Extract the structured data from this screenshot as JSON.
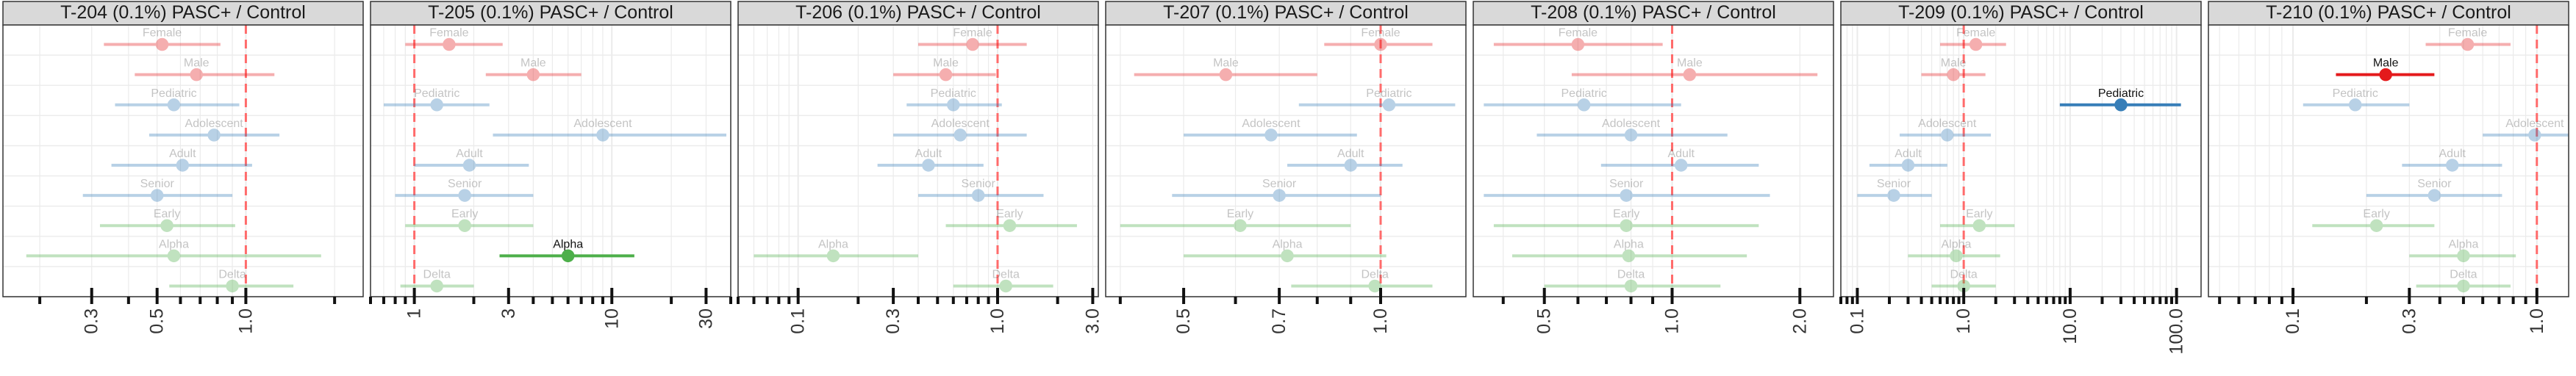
{
  "figure": {
    "background": "#ffffff"
  },
  "colors": {
    "Sex": "#e41a1c",
    "Age": "#377eb8",
    "Variant": "#4daf4a",
    "strip_fill": "#d9d9d9",
    "grid": "#ebebeb",
    "reference_line": "#ff6b6b",
    "dim_opacity": 0.35
  },
  "chart_data": [
    {
      "type": "scatter",
      "title": "T-204 (0.1%) PASC+ / Control",
      "xscale": "log",
      "xlim": [
        0.15,
        2.5
      ],
      "xticks": [
        0.3,
        0.5,
        1.0
      ],
      "xtick_labels": [
        "0.3",
        "0.5",
        "1.0"
      ],
      "reference_x": 1.0,
      "points": [
        {
          "label": "Female",
          "group": "Sex",
          "x": 0.52,
          "lo": 0.33,
          "hi": 0.82,
          "highlighted": false
        },
        {
          "label": "Male",
          "group": "Sex",
          "x": 0.68,
          "lo": 0.42,
          "hi": 1.25,
          "highlighted": false
        },
        {
          "label": "Pediatric",
          "group": "Age",
          "x": 0.57,
          "lo": 0.36,
          "hi": 0.95,
          "highlighted": false
        },
        {
          "label": "Adolescent",
          "group": "Age",
          "x": 0.78,
          "lo": 0.47,
          "hi": 1.3,
          "highlighted": false
        },
        {
          "label": "Adult",
          "group": "Age",
          "x": 0.61,
          "lo": 0.35,
          "hi": 1.05,
          "highlighted": false
        },
        {
          "label": "Senior",
          "group": "Age",
          "x": 0.5,
          "lo": 0.28,
          "hi": 0.9,
          "highlighted": false
        },
        {
          "label": "Early",
          "group": "Variant",
          "x": 0.54,
          "lo": 0.32,
          "hi": 0.92,
          "highlighted": false
        },
        {
          "label": "Alpha",
          "group": "Variant",
          "x": 0.57,
          "lo": 0.18,
          "hi": 1.8,
          "highlighted": false
        },
        {
          "label": "Delta",
          "group": "Variant",
          "x": 0.9,
          "lo": 0.55,
          "hi": 1.45,
          "highlighted": false
        }
      ]
    },
    {
      "type": "scatter",
      "title": "T-205 (0.1%) PASC+ / Control",
      "xscale": "log",
      "xlim": [
        0.6,
        40
      ],
      "xticks": [
        1,
        3,
        10,
        30
      ],
      "xtick_labels": [
        "1",
        "3",
        "10",
        "30"
      ],
      "reference_x": 1.0,
      "points": [
        {
          "label": "Female",
          "group": "Sex",
          "x": 1.5,
          "lo": 0.9,
          "hi": 2.8,
          "highlighted": false
        },
        {
          "label": "Male",
          "group": "Sex",
          "x": 4.0,
          "lo": 2.3,
          "hi": 7.0,
          "highlighted": false
        },
        {
          "label": "Pediatric",
          "group": "Age",
          "x": 1.3,
          "lo": 0.7,
          "hi": 2.4,
          "highlighted": false
        },
        {
          "label": "Adolescent",
          "group": "Age",
          "x": 9.0,
          "lo": 2.5,
          "hi": 38.0,
          "highlighted": false
        },
        {
          "label": "Adult",
          "group": "Age",
          "x": 1.9,
          "lo": 1.0,
          "hi": 3.8,
          "highlighted": false
        },
        {
          "label": "Senior",
          "group": "Age",
          "x": 1.8,
          "lo": 0.8,
          "hi": 4.0,
          "highlighted": false
        },
        {
          "label": "Early",
          "group": "Variant",
          "x": 1.8,
          "lo": 0.9,
          "hi": 4.0,
          "highlighted": false
        },
        {
          "label": "Alpha",
          "group": "Variant",
          "x": 6.0,
          "lo": 2.7,
          "hi": 13.0,
          "highlighted": true
        },
        {
          "label": "Delta",
          "group": "Variant",
          "x": 1.3,
          "lo": 0.85,
          "hi": 2.0,
          "highlighted": false
        }
      ]
    },
    {
      "type": "scatter",
      "title": "T-206 (0.1%) PASC+ / Control",
      "xscale": "log",
      "xlim": [
        0.05,
        3.2
      ],
      "xticks": [
        0.1,
        0.3,
        1.0,
        3.0
      ],
      "xtick_labels": [
        "0.1",
        "0.3",
        "1.0",
        "3.0"
      ],
      "reference_x": 1.0,
      "points": [
        {
          "label": "Female",
          "group": "Sex",
          "x": 0.75,
          "lo": 0.4,
          "hi": 1.4,
          "highlighted": false
        },
        {
          "label": "Male",
          "group": "Sex",
          "x": 0.55,
          "lo": 0.3,
          "hi": 0.98,
          "highlighted": false
        },
        {
          "label": "Pediatric",
          "group": "Age",
          "x": 0.6,
          "lo": 0.35,
          "hi": 1.05,
          "highlighted": false
        },
        {
          "label": "Adolescent",
          "group": "Age",
          "x": 0.65,
          "lo": 0.3,
          "hi": 1.4,
          "highlighted": false
        },
        {
          "label": "Adult",
          "group": "Age",
          "x": 0.45,
          "lo": 0.25,
          "hi": 0.85,
          "highlighted": false
        },
        {
          "label": "Senior",
          "group": "Age",
          "x": 0.8,
          "lo": 0.4,
          "hi": 1.7,
          "highlighted": false
        },
        {
          "label": "Early",
          "group": "Variant",
          "x": 1.15,
          "lo": 0.55,
          "hi": 2.5,
          "highlighted": false
        },
        {
          "label": "Alpha",
          "group": "Variant",
          "x": 0.15,
          "lo": 0.06,
          "hi": 0.4,
          "highlighted": false
        },
        {
          "label": "Delta",
          "group": "Variant",
          "x": 1.1,
          "lo": 0.6,
          "hi": 1.9,
          "highlighted": false
        }
      ]
    },
    {
      "type": "scatter",
      "title": "T-207 (0.1%) PASC+ / Control",
      "xscale": "log",
      "xlim": [
        0.38,
        1.35
      ],
      "xticks": [
        0.5,
        0.7,
        1.0
      ],
      "xtick_labels": [
        "0.5",
        "0.7",
        "1.0"
      ],
      "reference_x": 1.0,
      "points": [
        {
          "label": "Female",
          "group": "Sex",
          "x": 1.0,
          "lo": 0.82,
          "hi": 1.2,
          "highlighted": false
        },
        {
          "label": "Male",
          "group": "Sex",
          "x": 0.58,
          "lo": 0.42,
          "hi": 0.8,
          "highlighted": false
        },
        {
          "label": "Pediatric",
          "group": "Age",
          "x": 1.03,
          "lo": 0.75,
          "hi": 1.3,
          "highlighted": false
        },
        {
          "label": "Adolescent",
          "group": "Age",
          "x": 0.68,
          "lo": 0.5,
          "hi": 0.92,
          "highlighted": false
        },
        {
          "label": "Adult",
          "group": "Age",
          "x": 0.9,
          "lo": 0.72,
          "hi": 1.08,
          "highlighted": false
        },
        {
          "label": "Senior",
          "group": "Age",
          "x": 0.7,
          "lo": 0.48,
          "hi": 1.0,
          "highlighted": false
        },
        {
          "label": "Early",
          "group": "Variant",
          "x": 0.61,
          "lo": 0.4,
          "hi": 0.9,
          "highlighted": false
        },
        {
          "label": "Alpha",
          "group": "Variant",
          "x": 0.72,
          "lo": 0.5,
          "hi": 1.02,
          "highlighted": false
        },
        {
          "label": "Delta",
          "group": "Variant",
          "x": 0.98,
          "lo": 0.73,
          "hi": 1.2,
          "highlighted": false
        }
      ]
    },
    {
      "type": "scatter",
      "title": "T-208 (0.1%) PASC+ / Control",
      "xscale": "log",
      "xlim": [
        0.34,
        2.4
      ],
      "xticks": [
        0.5,
        1.0,
        2.0
      ],
      "xtick_labels": [
        "0.5",
        "1.0",
        "2.0"
      ],
      "reference_x": 1.0,
      "points": [
        {
          "label": "Female",
          "group": "Sex",
          "x": 0.6,
          "lo": 0.38,
          "hi": 0.95,
          "highlighted": false
        },
        {
          "label": "Male",
          "group": "Sex",
          "x": 1.1,
          "lo": 0.58,
          "hi": 2.2,
          "highlighted": false
        },
        {
          "label": "Pediatric",
          "group": "Age",
          "x": 0.62,
          "lo": 0.36,
          "hi": 1.05,
          "highlighted": false
        },
        {
          "label": "Adolescent",
          "group": "Age",
          "x": 0.8,
          "lo": 0.48,
          "hi": 1.35,
          "highlighted": false
        },
        {
          "label": "Adult",
          "group": "Age",
          "x": 1.05,
          "lo": 0.68,
          "hi": 1.6,
          "highlighted": false
        },
        {
          "label": "Senior",
          "group": "Age",
          "x": 0.78,
          "lo": 0.36,
          "hi": 1.7,
          "highlighted": false
        },
        {
          "label": "Early",
          "group": "Variant",
          "x": 0.78,
          "lo": 0.38,
          "hi": 1.6,
          "highlighted": false
        },
        {
          "label": "Alpha",
          "group": "Variant",
          "x": 0.79,
          "lo": 0.42,
          "hi": 1.5,
          "highlighted": false
        },
        {
          "label": "Delta",
          "group": "Variant",
          "x": 0.8,
          "lo": 0.5,
          "hi": 1.3,
          "highlighted": false
        }
      ]
    },
    {
      "type": "scatter",
      "title": "T-209 (0.1%) PASC+ / Control",
      "xscale": "log",
      "xlim": [
        0.07,
        170
      ],
      "xticks": [
        0.1,
        1.0,
        10.0,
        100.0
      ],
      "xtick_labels": [
        "0.1",
        "1.0",
        "10.0",
        "100.0"
      ],
      "reference_x": 1.0,
      "points": [
        {
          "label": "Female",
          "group": "Sex",
          "x": 1.3,
          "lo": 0.6,
          "hi": 2.5,
          "highlighted": false
        },
        {
          "label": "Male",
          "group": "Sex",
          "x": 0.8,
          "lo": 0.4,
          "hi": 1.6,
          "highlighted": false
        },
        {
          "label": "Pediatric",
          "group": "Age",
          "x": 30.0,
          "lo": 8.0,
          "hi": 110.0,
          "highlighted": true
        },
        {
          "label": "Adolescent",
          "group": "Age",
          "x": 0.7,
          "lo": 0.25,
          "hi": 1.8,
          "highlighted": false
        },
        {
          "label": "Adult",
          "group": "Age",
          "x": 0.3,
          "lo": 0.13,
          "hi": 0.7,
          "highlighted": false
        },
        {
          "label": "Senior",
          "group": "Age",
          "x": 0.22,
          "lo": 0.1,
          "hi": 0.5,
          "highlighted": false
        },
        {
          "label": "Early",
          "group": "Variant",
          "x": 1.4,
          "lo": 0.6,
          "hi": 3.0,
          "highlighted": false
        },
        {
          "label": "Alpha",
          "group": "Variant",
          "x": 0.85,
          "lo": 0.3,
          "hi": 2.2,
          "highlighted": false
        },
        {
          "label": "Delta",
          "group": "Variant",
          "x": 1.0,
          "lo": 0.5,
          "hi": 2.0,
          "highlighted": false
        }
      ]
    },
    {
      "type": "scatter",
      "title": "T-210 (0.1%) PASC+ / Control",
      "xscale": "log",
      "xlim": [
        0.045,
        1.35
      ],
      "xticks": [
        0.1,
        0.3,
        1.0
      ],
      "xtick_labels": [
        "0.1",
        "0.3",
        "1.0"
      ],
      "reference_x": 1.0,
      "points": [
        {
          "label": "Female",
          "group": "Sex",
          "x": 0.52,
          "lo": 0.35,
          "hi": 0.78,
          "highlighted": false
        },
        {
          "label": "Male",
          "group": "Sex",
          "x": 0.24,
          "lo": 0.15,
          "hi": 0.38,
          "highlighted": true
        },
        {
          "label": "Pediatric",
          "group": "Age",
          "x": 0.18,
          "lo": 0.11,
          "hi": 0.3,
          "highlighted": false
        },
        {
          "label": "Adolescent",
          "group": "Age",
          "x": 0.98,
          "lo": 0.6,
          "hi": 1.35,
          "highlighted": false
        },
        {
          "label": "Adult",
          "group": "Age",
          "x": 0.45,
          "lo": 0.28,
          "hi": 0.72,
          "highlighted": false
        },
        {
          "label": "Senior",
          "group": "Age",
          "x": 0.38,
          "lo": 0.2,
          "hi": 0.72,
          "highlighted": false
        },
        {
          "label": "Early",
          "group": "Variant",
          "x": 0.22,
          "lo": 0.12,
          "hi": 0.38,
          "highlighted": false
        },
        {
          "label": "Alpha",
          "group": "Variant",
          "x": 0.5,
          "lo": 0.3,
          "hi": 0.82,
          "highlighted": false
        },
        {
          "label": "Delta",
          "group": "Variant",
          "x": 0.5,
          "lo": 0.32,
          "hi": 0.78,
          "highlighted": false
        }
      ]
    }
  ]
}
